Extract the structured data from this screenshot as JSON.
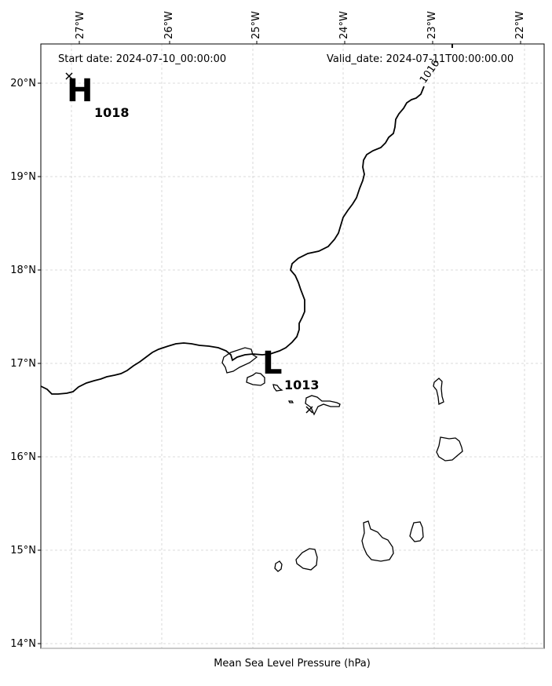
{
  "header": {
    "start_date": "Start date: 2024-07-10_00:00:00",
    "valid_date": "Valid_date: 2024-07-11T00:00:00.00"
  },
  "axes": {
    "lon_labels": [
      "27°W",
      "26°W",
      "25°W",
      "24°W",
      "23°W",
      "22°W"
    ],
    "lat_labels": [
      "20°N",
      "19°N",
      "18°N",
      "17°N",
      "16°N",
      "15°N",
      "14°N"
    ],
    "xlabel": "Mean Sea Level Pressure (hPa)"
  },
  "isobar": {
    "label": "1016"
  },
  "high": {
    "letter": "H",
    "value": "1018"
  },
  "low": {
    "letter": "L",
    "value": "1013"
  },
  "grid": {
    "visible": true,
    "style": "dashed",
    "color": "#d0d0d0"
  }
}
